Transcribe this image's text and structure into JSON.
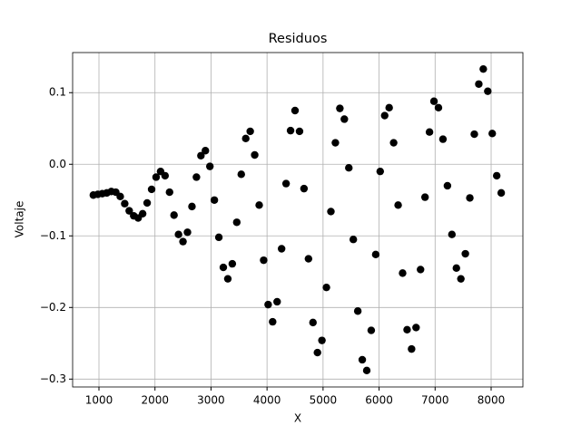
{
  "chart_data": {
    "type": "scatter",
    "title": "Residuos",
    "x_label": "X",
    "y_label": "Voltaje",
    "color": "#000000",
    "grid": true,
    "x": [
      900,
      980,
      1060,
      1140,
      1220,
      1300,
      1380,
      1460,
      1540,
      1620,
      1700,
      1780,
      1860,
      1940,
      2020,
      2100,
      2180,
      2260,
      2340,
      2420,
      2500,
      2580,
      2660,
      2740,
      2820,
      2900,
      2980,
      3060,
      3140,
      3220,
      3300,
      3380,
      3460,
      3540,
      3620,
      3700,
      3780,
      3860,
      3940,
      4020,
      4100,
      4180,
      4260,
      4340,
      4420,
      4500,
      4580,
      4660,
      4740,
      4820,
      4900,
      4980,
      5060,
      5140,
      5220,
      5300,
      5380,
      5460,
      5540,
      5620,
      5700,
      5780,
      5860,
      5940,
      6020,
      6100,
      6180,
      6260,
      6340,
      6420,
      6500,
      6580,
      6660,
      6740,
      6820,
      6900,
      6980,
      7060,
      7140,
      7220,
      7300,
      7380,
      7460,
      7540,
      7620,
      7700,
      7780,
      7860,
      7940,
      8020,
      8100,
      8180
    ],
    "values": [
      -0.043,
      -0.042,
      -0.041,
      -0.04,
      -0.038,
      -0.039,
      -0.045,
      -0.055,
      -0.065,
      -0.072,
      -0.075,
      -0.069,
      -0.054,
      -0.035,
      -0.018,
      -0.01,
      -0.016,
      -0.039,
      -0.071,
      -0.098,
      -0.108,
      -0.095,
      -0.059,
      -0.018,
      0.012,
      0.019,
      -0.003,
      -0.05,
      -0.102,
      -0.144,
      -0.16,
      -0.139,
      -0.081,
      -0.014,
      0.036,
      0.046,
      0.013,
      -0.057,
      -0.134,
      -0.196,
      -0.22,
      -0.192,
      -0.118,
      -0.027,
      0.047,
      0.075,
      0.046,
      -0.034,
      -0.132,
      -0.221,
      -0.263,
      -0.246,
      -0.172,
      -0.066,
      0.03,
      0.078,
      0.063,
      -0.005,
      -0.105,
      -0.205,
      -0.273,
      -0.288,
      -0.232,
      -0.126,
      -0.01,
      0.068,
      0.079,
      0.03,
      -0.057,
      -0.152,
      -0.231,
      -0.258,
      -0.228,
      -0.147,
      -0.046,
      0.045,
      0.088,
      0.079,
      0.035,
      -0.03,
      -0.098,
      -0.145,
      -0.16,
      -0.125,
      -0.047,
      0.042,
      0.112,
      0.133,
      0.102,
      0.043,
      -0.016,
      -0.04
    ],
    "xlim": [
      530,
      8567
    ],
    "ylim": [
      -0.311,
      0.156
    ],
    "xticks": [
      1000,
      2000,
      3000,
      4000,
      5000,
      6000,
      7000,
      8000
    ],
    "yticks": [
      {
        "value": -0.3,
        "label": "−0.3"
      },
      {
        "value": -0.2,
        "label": "−0.2"
      },
      {
        "value": -0.1,
        "label": "−0.1"
      },
      {
        "value": 0,
        "label": "0.0"
      },
      0.1
    ]
  }
}
